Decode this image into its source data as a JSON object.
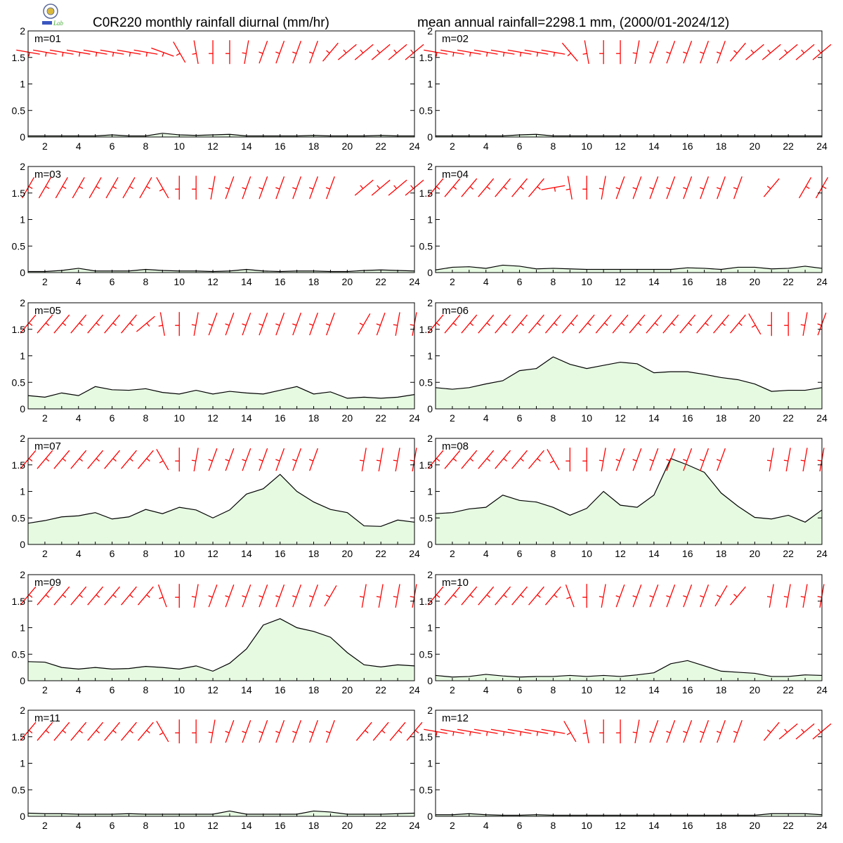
{
  "header": {
    "title_left": "C0R220 monthly rainfall diurnal (mm/hr)",
    "title_right": "mean annual rainfall=2298.1 mm, (2000/01-2024/12)",
    "logo_text": "Lab"
  },
  "colors": {
    "fill": "#e6fae2",
    "line": "#000000",
    "wind": "#ff0000"
  },
  "chart_data": {
    "type": "area",
    "layout": "6 rows x 2 columns of small multiples",
    "ylim": [
      0,
      2
    ],
    "yticks": [
      "0",
      "0.5",
      "1",
      "1.5",
      "2"
    ],
    "xlim": [
      1,
      24
    ],
    "xticks": [
      "2",
      "4",
      "6",
      "8",
      "10",
      "12",
      "14",
      "16",
      "18",
      "20",
      "22",
      "24"
    ],
    "x": [
      1,
      2,
      3,
      4,
      5,
      6,
      7,
      8,
      9,
      10,
      11,
      12,
      13,
      14,
      15,
      16,
      17,
      18,
      19,
      20,
      21,
      22,
      23,
      24
    ],
    "overlay": "wind barbs (red) along top of each panel, one per hour; some hours missing",
    "panels": [
      {
        "label": "m=01",
        "values": [
          0.02,
          0.02,
          0.02,
          0.02,
          0.02,
          0.04,
          0.02,
          0.02,
          0.07,
          0.04,
          0.03,
          0.04,
          0.05,
          0.02,
          0.02,
          0.02,
          0.02,
          0.03,
          0.02,
          0.02,
          0.02,
          0.03,
          0.02,
          0.02
        ],
        "wind": [
          100,
          100,
          100,
          100,
          100,
          100,
          100,
          100,
          110,
          150,
          170,
          180,
          180,
          190,
          200,
          200,
          200,
          200,
          220,
          230,
          230,
          230,
          230,
          230
        ]
      },
      {
        "label": "m=02",
        "values": [
          0.02,
          0.02,
          0.02,
          0.02,
          0.02,
          0.04,
          0.05,
          0.02,
          0.02,
          0.02,
          0.02,
          0.02,
          0.02,
          0.02,
          0.02,
          0.02,
          0.02,
          0.02,
          0.02,
          0.02,
          0.02,
          0.02,
          0.02,
          0.02
        ],
        "wind": [
          100,
          100,
          100,
          100,
          100,
          100,
          100,
          100,
          140,
          170,
          180,
          180,
          190,
          200,
          200,
          200,
          200,
          200,
          220,
          230,
          230,
          230,
          230,
          230
        ]
      },
      {
        "label": "m=03",
        "values": [
          0.02,
          0.02,
          0.04,
          0.08,
          0.03,
          0.03,
          0.03,
          0.06,
          0.04,
          0.03,
          0.03,
          0.02,
          0.03,
          0.06,
          0.03,
          0.02,
          0.03,
          0.03,
          0.02,
          0.02,
          0.04,
          0.05,
          0.04,
          0.03
        ],
        "wind": [
          30,
          30,
          30,
          30,
          30,
          30,
          30,
          30,
          150,
          180,
          180,
          190,
          200,
          200,
          200,
          200,
          200,
          200,
          200,
          null,
          230,
          230,
          230,
          230
        ]
      },
      {
        "label": "m=04",
        "values": [
          0.05,
          0.1,
          0.11,
          0.08,
          0.14,
          0.12,
          0.07,
          0.08,
          0.07,
          0.06,
          0.06,
          0.06,
          0.06,
          0.06,
          0.06,
          0.09,
          0.08,
          0.06,
          0.1,
          0.1,
          0.07,
          0.08,
          0.12,
          0.08
        ],
        "wind": [
          40,
          40,
          40,
          40,
          40,
          40,
          40,
          80,
          170,
          180,
          190,
          200,
          200,
          200,
          200,
          200,
          200,
          200,
          200,
          null,
          220,
          null,
          30,
          30
        ]
      },
      {
        "label": "m=05",
        "values": [
          0.25,
          0.22,
          0.3,
          0.25,
          0.42,
          0.36,
          0.35,
          0.38,
          0.31,
          0.28,
          0.35,
          0.28,
          0.33,
          0.3,
          0.28,
          0.35,
          0.42,
          0.28,
          0.32,
          0.2,
          0.22,
          0.2,
          0.22,
          0.27
        ],
        "wind": [
          40,
          40,
          40,
          40,
          40,
          40,
          40,
          50,
          170,
          180,
          190,
          200,
          200,
          200,
          200,
          200,
          200,
          200,
          200,
          null,
          210,
          200,
          190,
          190
        ]
      },
      {
        "label": "m=06",
        "values": [
          0.4,
          0.37,
          0.4,
          0.47,
          0.53,
          0.72,
          0.76,
          0.98,
          0.84,
          0.76,
          0.82,
          0.88,
          0.85,
          0.68,
          0.7,
          0.7,
          0.65,
          0.59,
          0.55,
          0.47,
          0.33,
          0.35,
          0.35,
          0.4
        ],
        "wind": [
          40,
          40,
          40,
          40,
          40,
          40,
          40,
          40,
          40,
          40,
          40,
          40,
          40,
          40,
          40,
          40,
          40,
          40,
          40,
          150,
          180,
          180,
          190,
          200
        ]
      },
      {
        "label": "m=07",
        "values": [
          0.4,
          0.45,
          0.52,
          0.54,
          0.6,
          0.48,
          0.52,
          0.66,
          0.58,
          0.7,
          0.65,
          0.5,
          0.65,
          0.95,
          1.05,
          1.32,
          1.0,
          0.8,
          0.66,
          0.6,
          0.35,
          0.34,
          0.46,
          0.42
        ],
        "wind": [
          40,
          40,
          40,
          40,
          40,
          40,
          40,
          40,
          150,
          180,
          190,
          200,
          200,
          200,
          200,
          200,
          200,
          200,
          null,
          null,
          190,
          190,
          190,
          190
        ]
      },
      {
        "label": "m=08",
        "values": [
          0.58,
          0.6,
          0.67,
          0.7,
          0.93,
          0.83,
          0.8,
          0.7,
          0.55,
          0.68,
          1.0,
          0.74,
          0.7,
          0.93,
          1.62,
          1.5,
          1.36,
          0.97,
          0.72,
          0.51,
          0.48,
          0.55,
          0.42,
          0.65
        ],
        "wind": [
          40,
          40,
          40,
          40,
          40,
          40,
          40,
          150,
          180,
          180,
          190,
          200,
          200,
          200,
          200,
          200,
          200,
          200,
          null,
          null,
          190,
          190,
          190,
          190
        ]
      },
      {
        "label": "m=09",
        "values": [
          0.36,
          0.35,
          0.25,
          0.22,
          0.25,
          0.22,
          0.23,
          0.27,
          0.25,
          0.22,
          0.28,
          0.18,
          0.33,
          0.6,
          1.05,
          1.17,
          1.0,
          0.93,
          0.82,
          0.53,
          0.3,
          0.26,
          0.3,
          0.28
        ],
        "wind": [
          40,
          40,
          40,
          40,
          40,
          40,
          40,
          40,
          160,
          180,
          190,
          200,
          200,
          200,
          200,
          200,
          200,
          200,
          210,
          null,
          190,
          190,
          190,
          190
        ]
      },
      {
        "label": "m=10",
        "values": [
          0.1,
          0.07,
          0.08,
          0.12,
          0.09,
          0.07,
          0.08,
          0.08,
          0.1,
          0.08,
          0.1,
          0.08,
          0.11,
          0.15,
          0.32,
          0.38,
          0.28,
          0.18,
          0.16,
          0.14,
          0.08,
          0.08,
          0.11,
          0.1
        ],
        "wind": [
          40,
          40,
          40,
          40,
          40,
          40,
          40,
          40,
          160,
          180,
          190,
          200,
          200,
          200,
          200,
          200,
          200,
          210,
          220,
          null,
          190,
          190,
          190,
          190
        ]
      },
      {
        "label": "m=11",
        "values": [
          0.06,
          0.05,
          0.05,
          0.04,
          0.04,
          0.04,
          0.05,
          0.04,
          0.04,
          0.04,
          0.04,
          0.04,
          0.1,
          0.04,
          0.04,
          0.04,
          0.04,
          0.1,
          0.08,
          0.04,
          0.04,
          0.04,
          0.05,
          0.06
        ],
        "wind": [
          40,
          40,
          40,
          40,
          40,
          40,
          40,
          40,
          150,
          180,
          180,
          190,
          200,
          200,
          200,
          200,
          200,
          200,
          200,
          null,
          40,
          40,
          40,
          40
        ]
      },
      {
        "label": "m=12",
        "values": [
          0.03,
          0.03,
          0.05,
          0.03,
          0.02,
          0.02,
          0.03,
          0.02,
          0.02,
          0.02,
          0.02,
          0.02,
          0.02,
          0.02,
          0.02,
          0.02,
          0.02,
          0.02,
          0.02,
          0.02,
          0.05,
          0.05,
          0.05,
          0.03
        ],
        "wind": [
          100,
          100,
          100,
          100,
          100,
          100,
          100,
          100,
          150,
          170,
          180,
          180,
          190,
          200,
          200,
          200,
          200,
          200,
          200,
          null,
          220,
          230,
          230,
          230
        ]
      }
    ]
  }
}
